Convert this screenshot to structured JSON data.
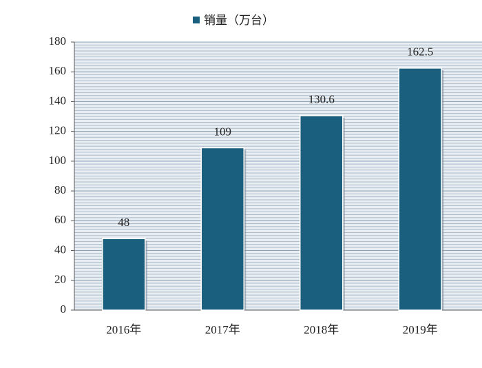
{
  "chart_data": {
    "type": "bar",
    "legend": "销量（万台）",
    "legend_position": "top",
    "categories": [
      "2016年",
      "2017年",
      "2018年",
      "2019年"
    ],
    "values": [
      48,
      109,
      130.6,
      162.5
    ],
    "color": "#1b5f7e",
    "ylim": [
      0,
      180
    ],
    "yticks": [
      0,
      20,
      40,
      60,
      80,
      100,
      120,
      140,
      160,
      180
    ],
    "grid": true
  }
}
